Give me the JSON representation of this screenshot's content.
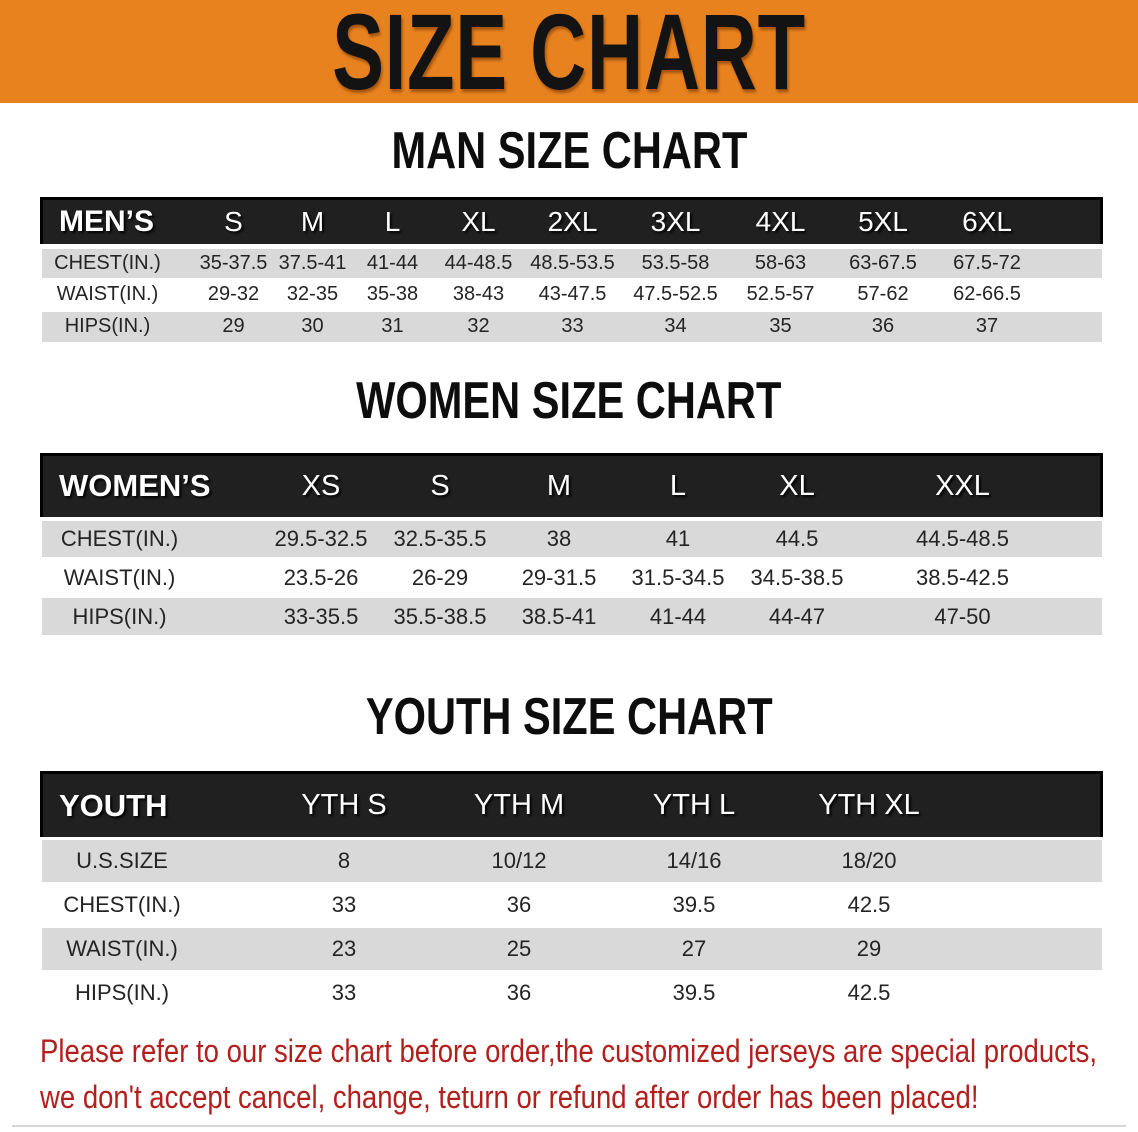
{
  "banner": {
    "title": "SIZE CHART",
    "bg_color": "#E8821E"
  },
  "sections": [
    {
      "heading": "MAN SIZE CHART",
      "table": {
        "name": "MEN’S",
        "sizes": [
          "S",
          "M",
          "L",
          "XL",
          "2XL",
          "3XL",
          "4XL",
          "5XL",
          "6XL"
        ],
        "rows": [
          {
            "label": "CHEST(IN.)",
            "values": [
              "35-37.5",
              "37.5-41",
              "41-44",
              "44-48.5",
              "48.5-53.5",
              "53.5-58",
              "58-63",
              "63-67.5",
              "67.5-72"
            ]
          },
          {
            "label": "WAIST(IN.)",
            "values": [
              "29-32",
              "32-35",
              "35-38",
              "38-43",
              "43-47.5",
              "47.5-52.5",
              "52.5-57",
              "57-62",
              "62-66.5"
            ]
          },
          {
            "label": "HIPS(IN.)",
            "values": [
              "29",
              "30",
              "31",
              "32",
              "33",
              "34",
              "35",
              "36",
              "37"
            ]
          }
        ]
      }
    },
    {
      "heading": "WOMEN SIZE CHART",
      "table": {
        "name": "WOMEN’S",
        "sizes": [
          "XS",
          "S",
          "M",
          "L",
          "XL",
          "XXL"
        ],
        "rows": [
          {
            "label": "CHEST(IN.)",
            "values": [
              "29.5-32.5",
              "32.5-35.5",
              "38",
              "41",
              "44.5",
              "44.5-48.5"
            ]
          },
          {
            "label": "WAIST(IN.)",
            "values": [
              "23.5-26",
              "26-29",
              "29-31.5",
              "31.5-34.5",
              "34.5-38.5",
              "38.5-42.5"
            ]
          },
          {
            "label": "HIPS(IN.)",
            "values": [
              "33-35.5",
              "35.5-38.5",
              "38.5-41",
              "41-44",
              "44-47",
              "47-50"
            ]
          }
        ]
      }
    },
    {
      "heading": "YOUTH SIZE CHART",
      "table": {
        "name": "YOUTH",
        "sizes": [
          "YTH S",
          "YTH M",
          "YTH L",
          "YTH XL"
        ],
        "rows": [
          {
            "label": "U.S.SIZE",
            "values": [
              "8",
              "10/12",
              "14/16",
              "18/20"
            ]
          },
          {
            "label": "CHEST(IN.)",
            "values": [
              "33",
              "36",
              "39.5",
              "42.5"
            ]
          },
          {
            "label": "WAIST(IN.)",
            "values": [
              "23",
              "25",
              "27",
              "29"
            ]
          },
          {
            "label": "HIPS(IN.)",
            "values": [
              "33",
              "36",
              "39.5",
              "42.5"
            ]
          }
        ]
      }
    }
  ],
  "footer": {
    "line1": "Please refer to our size chart before order,the customized jerseys are special products,",
    "line2": "we don't accept cancel, change, teturn or refund after order has been placed!"
  },
  "colors": {
    "banner_orange": "#E8821E",
    "header_black": "#202020",
    "row_gray": "#D9D9D9",
    "footer_red": "#B2201E"
  }
}
